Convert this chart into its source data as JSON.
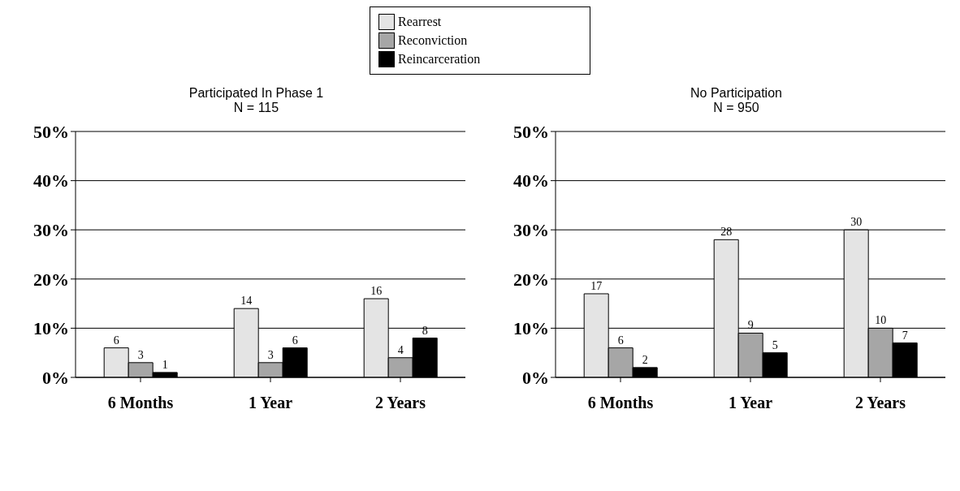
{
  "chart_data": [
    {
      "type": "bar",
      "title": "Participated In Phase 1",
      "subtitle": "N = 115",
      "categories": [
        "6 Months",
        "1 Year",
        "2 Years"
      ],
      "series": [
        {
          "name": "Rearrest",
          "color": "#e4e4e4",
          "values": [
            6,
            14,
            16
          ]
        },
        {
          "name": "Reconviction",
          "color": "#a6a6a6",
          "values": [
            3,
            3,
            4
          ]
        },
        {
          "name": "Reincarceration",
          "color": "#000000",
          "values": [
            1,
            6,
            8
          ]
        }
      ],
      "ylim": [
        0,
        50
      ],
      "yticks": [
        {
          "value": 0,
          "label": "0%"
        },
        {
          "value": 10,
          "label": "10%"
        },
        {
          "value": 20,
          "label": "20%"
        },
        {
          "value": 30,
          "label": "30%"
        },
        {
          "value": 40,
          "label": "40%"
        },
        {
          "value": 50,
          "label": "50%"
        }
      ],
      "grid": "y",
      "legend": "top",
      "data_labels": true
    },
    {
      "type": "bar",
      "title": "No Participation",
      "subtitle": "N = 950",
      "categories": [
        "6 Months",
        "1 Year",
        "2 Years"
      ],
      "series": [
        {
          "color": "#e4e4e4",
          "values": [
            17,
            28,
            30
          ]
        },
        {
          "color": "#a6a6a6",
          "values": [
            6,
            9,
            10
          ]
        },
        {
          "color": "#000000",
          "values": [
            2,
            5,
            7
          ]
        }
      ],
      "ylim": [
        0,
        50
      ],
      "yticks": [
        {
          "value": 0,
          "label": "0%"
        },
        {
          "value": 10,
          "label": "10%"
        },
        {
          "value": 20,
          "label": "20%"
        },
        {
          "value": 30,
          "label": "30%"
        },
        {
          "value": 40,
          "label": "40%"
        },
        {
          "value": 50,
          "label": "50%"
        }
      ],
      "grid": "y",
      "data_labels": true
    }
  ]
}
